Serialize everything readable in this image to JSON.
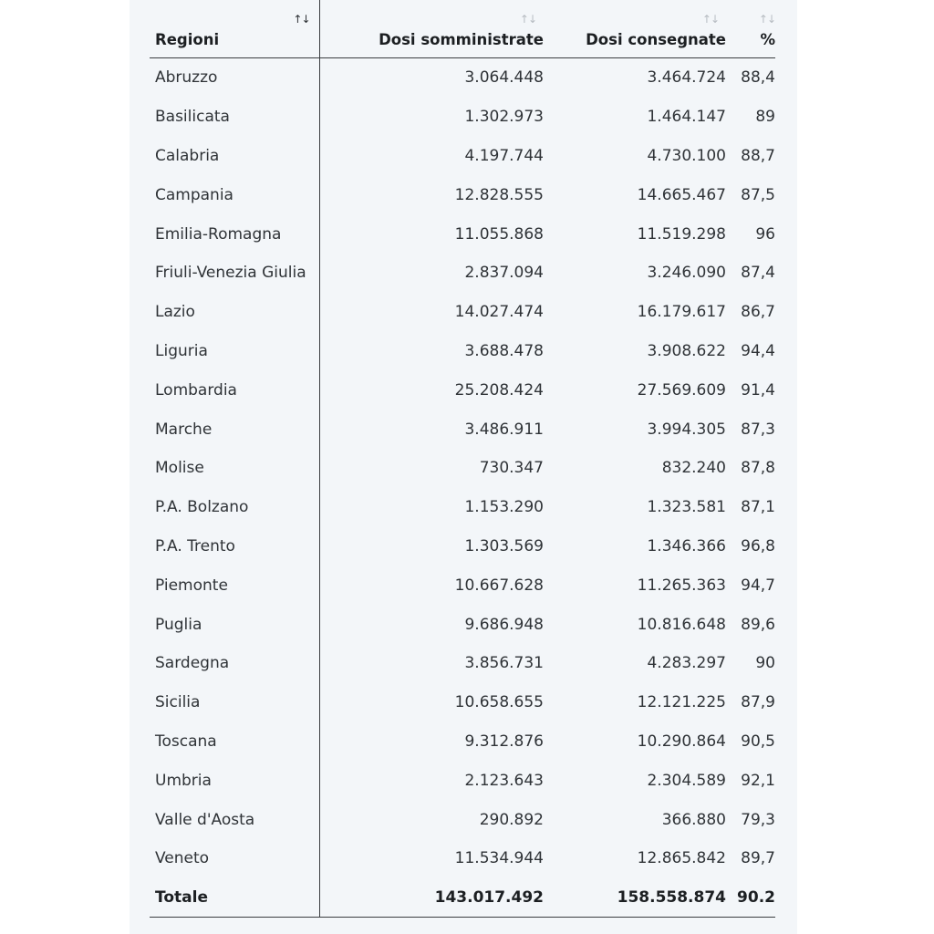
{
  "table": {
    "sort_glyph": "↑↓",
    "headers": {
      "region": "Regioni",
      "administered": "Dosi somministrate",
      "delivered": "Dosi consegnate",
      "percent": "%"
    },
    "rows": [
      {
        "region": "Abruzzo",
        "administered": "3.064.448",
        "delivered": "3.464.724",
        "percent": "88,4"
      },
      {
        "region": "Basilicata",
        "administered": "1.302.973",
        "delivered": "1.464.147",
        "percent": "89"
      },
      {
        "region": "Calabria",
        "administered": "4.197.744",
        "delivered": "4.730.100",
        "percent": "88,7"
      },
      {
        "region": "Campania",
        "administered": "12.828.555",
        "delivered": "14.665.467",
        "percent": "87,5"
      },
      {
        "region": "Emilia-Romagna",
        "administered": "11.055.868",
        "delivered": "11.519.298",
        "percent": "96"
      },
      {
        "region": "Friuli-Venezia Giulia",
        "administered": "2.837.094",
        "delivered": "3.246.090",
        "percent": "87,4"
      },
      {
        "region": "Lazio",
        "administered": "14.027.474",
        "delivered": "16.179.617",
        "percent": "86,7"
      },
      {
        "region": "Liguria",
        "administered": "3.688.478",
        "delivered": "3.908.622",
        "percent": "94,4"
      },
      {
        "region": "Lombardia",
        "administered": "25.208.424",
        "delivered": "27.569.609",
        "percent": "91,4"
      },
      {
        "region": "Marche",
        "administered": "3.486.911",
        "delivered": "3.994.305",
        "percent": "87,3"
      },
      {
        "region": "Molise",
        "administered": "730.347",
        "delivered": "832.240",
        "percent": "87,8"
      },
      {
        "region": "P.A. Bolzano",
        "administered": "1.153.290",
        "delivered": "1.323.581",
        "percent": "87,1"
      },
      {
        "region": "P.A. Trento",
        "administered": "1.303.569",
        "delivered": "1.346.366",
        "percent": "96,8"
      },
      {
        "region": "Piemonte",
        "administered": "10.667.628",
        "delivered": "11.265.363",
        "percent": "94,7"
      },
      {
        "region": "Puglia",
        "administered": "9.686.948",
        "delivered": "10.816.648",
        "percent": "89,6"
      },
      {
        "region": "Sardegna",
        "administered": "3.856.731",
        "delivered": "4.283.297",
        "percent": "90"
      },
      {
        "region": "Sicilia",
        "administered": "10.658.655",
        "delivered": "12.121.225",
        "percent": "87,9"
      },
      {
        "region": "Toscana",
        "administered": "9.312.876",
        "delivered": "10.290.864",
        "percent": "90,5"
      },
      {
        "region": "Umbria",
        "administered": "2.123.643",
        "delivered": "2.304.589",
        "percent": "92,1"
      },
      {
        "region": "Valle d'Aosta",
        "administered": "290.892",
        "delivered": "366.880",
        "percent": "79,3"
      },
      {
        "region": "Veneto",
        "administered": "11.534.944",
        "delivered": "12.865.842",
        "percent": "89,7"
      }
    ],
    "total": {
      "region": "Totale",
      "administered": "143.017.492",
      "delivered": "158.558.874",
      "percent": "90.2"
    }
  }
}
